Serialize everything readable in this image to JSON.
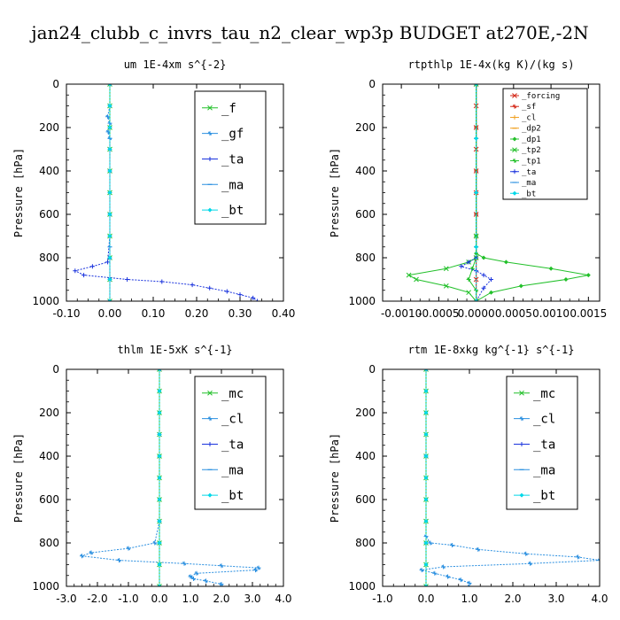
{
  "title": "jan24_clubb_c_invrs_tau_n2_clear_wp3p  BUDGET at270E,-2N",
  "colors": {
    "green": "#22c02a",
    "blue": "#1a33dd",
    "lightblue": "#2a8fe0",
    "cyan": "#00d8e8",
    "red": "#d42a1a",
    "orange": "#f0a020",
    "darkblue": "#4060d0"
  },
  "chart_data": [
    {
      "type": "line",
      "title": "um   1E-4xm s^{-2}",
      "ylabel": "Pressure [hPa]",
      "xlim": [
        -0.1,
        0.4
      ],
      "ylim": [
        0,
        1000
      ],
      "xticks": [
        "-0.10",
        "0.00",
        "0.10",
        "0.20",
        "0.30",
        "0.40"
      ],
      "yticks": [
        "0",
        "200",
        "400",
        "600",
        "800",
        "1000"
      ],
      "legend_position": "top-right",
      "series": [
        {
          "name": "_f",
          "color_key": "green",
          "x": [
            0,
            0,
            0,
            0,
            0,
            0,
            0,
            0,
            0,
            0,
            0
          ],
          "y": [
            0,
            100,
            200,
            300,
            400,
            500,
            600,
            700,
            800,
            900,
            1000
          ]
        },
        {
          "name": "_gf",
          "color_key": "lightblue",
          "x": [
            0,
            0,
            -0.005,
            0,
            -0.004,
            0,
            0,
            0,
            0,
            0,
            0,
            0
          ],
          "y": [
            0,
            100,
            150,
            180,
            220,
            250,
            300,
            400,
            600,
            800,
            900,
            1000
          ]
        },
        {
          "name": "_ta",
          "color_key": "blue",
          "x": [
            0,
            0,
            0,
            0,
            -0.005,
            -0.04,
            -0.08,
            -0.06,
            0.04,
            0.12,
            0.19,
            0.23,
            0.27,
            0.3,
            0.33,
            0.34
          ],
          "y": [
            0,
            200,
            400,
            700,
            820,
            840,
            860,
            880,
            900,
            910,
            925,
            940,
            955,
            970,
            985,
            1000
          ]
        },
        {
          "name": "_ma",
          "color_key": "lightblue",
          "x": [
            0,
            0,
            0,
            0,
            0
          ],
          "y": [
            0,
            250,
            500,
            750,
            1000
          ]
        },
        {
          "name": "_bt",
          "color_key": "cyan",
          "x": [
            0,
            0,
            0,
            0,
            0,
            0,
            0,
            0,
            0,
            0,
            0
          ],
          "y": [
            0,
            100,
            200,
            300,
            400,
            500,
            600,
            700,
            800,
            900,
            1000
          ]
        }
      ]
    },
    {
      "type": "line",
      "title": "rtpthlp   1E-4x(kg K)/(kg s)",
      "ylabel": "Pressure [hPa]",
      "xlim": [
        -0.00125,
        0.00165
      ],
      "ylim": [
        0,
        1000
      ],
      "xticks": [
        "-0.0010",
        "-0.0005",
        "0.0000",
        "0.0005",
        "0.0010",
        "0.0015"
      ],
      "yticks": [
        "0",
        "200",
        "400",
        "600",
        "800",
        "1000"
      ],
      "legend_position": "top-right",
      "series": [
        {
          "name": "_forcing",
          "color_key": "red",
          "x": [
            0,
            0,
            0,
            0,
            0,
            0,
            0,
            0,
            0,
            0,
            0
          ],
          "y": [
            0,
            100,
            200,
            300,
            400,
            500,
            600,
            700,
            800,
            900,
            1000
          ]
        },
        {
          "name": "_sf",
          "color_key": "red",
          "x": [
            0,
            0,
            0,
            0,
            0,
            0
          ],
          "y": [
            0,
            200,
            400,
            600,
            800,
            1000
          ]
        },
        {
          "name": "_cl",
          "color_key": "orange",
          "x": [
            0,
            0,
            0,
            0,
            0
          ],
          "y": [
            0,
            250,
            500,
            750,
            1000
          ]
        },
        {
          "name": "_dp2",
          "color_key": "orange",
          "x": [
            0,
            0,
            0,
            0,
            0
          ],
          "y": [
            0,
            250,
            500,
            750,
            1000
          ]
        },
        {
          "name": "_dp1",
          "color_key": "green",
          "x": [
            0,
            0,
            0,
            0.0001,
            0.0004,
            0.001,
            0.0015,
            0.0012,
            0.0006,
            0.0002,
            0
          ],
          "y": [
            0,
            700,
            780,
            800,
            820,
            850,
            880,
            900,
            930,
            960,
            1000
          ]
        },
        {
          "name": "_tp2",
          "color_key": "green",
          "x": [
            0,
            0,
            0,
            -0.0001,
            -0.0004,
            -0.0009,
            -0.0008,
            -0.0004,
            -0.0001,
            0
          ],
          "y": [
            0,
            700,
            800,
            820,
            850,
            880,
            900,
            930,
            960,
            1000
          ]
        },
        {
          "name": "_tp1",
          "color_key": "green",
          "x": [
            0,
            0,
            -5e-05,
            -0.0001,
            0,
            0
          ],
          "y": [
            0,
            800,
            850,
            900,
            950,
            1000
          ]
        },
        {
          "name": "_ta",
          "color_key": "blue",
          "x": [
            0,
            0,
            -0.0001,
            -0.0002,
            0,
            0.0001,
            0.0002,
            0.0001,
            0
          ],
          "y": [
            0,
            800,
            820,
            840,
            860,
            880,
            900,
            940,
            1000
          ]
        },
        {
          "name": "_ma",
          "color_key": "lightblue",
          "x": [
            0,
            0,
            0,
            0,
            0
          ],
          "y": [
            0,
            250,
            500,
            750,
            1000
          ]
        },
        {
          "name": "_bt",
          "color_key": "cyan",
          "x": [
            0,
            0,
            0,
            0,
            0
          ],
          "y": [
            0,
            250,
            500,
            750,
            1000
          ]
        }
      ]
    },
    {
      "type": "line",
      "title": "thlm   1E-5xK s^{-1}",
      "ylabel": "Pressure [hPa]",
      "xlim": [
        -3.0,
        4.0
      ],
      "ylim": [
        0,
        1000
      ],
      "xticks": [
        "-3.0",
        "-2.0",
        "-1.0",
        "0.0",
        "1.0",
        "2.0",
        "3.0",
        "4.0"
      ],
      "yticks": [
        "0",
        "200",
        "400",
        "600",
        "800",
        "1000"
      ],
      "legend_position": "top-right",
      "series": [
        {
          "name": "_mc",
          "color_key": "green",
          "x": [
            0,
            0,
            0,
            0,
            0,
            0,
            0,
            0,
            0,
            0,
            0
          ],
          "y": [
            0,
            100,
            200,
            300,
            400,
            500,
            600,
            700,
            800,
            900,
            1000
          ]
        },
        {
          "name": "_cl",
          "color_key": "lightblue",
          "x": [
            0,
            0,
            0,
            -0.15,
            -1.0,
            -2.2,
            -2.5,
            -1.3,
            0.8,
            2.0,
            3.2,
            3.1,
            1.2,
            1.0,
            1.1,
            1.5,
            2.0,
            2.0
          ],
          "y": [
            0,
            300,
            700,
            800,
            825,
            845,
            860,
            880,
            895,
            905,
            915,
            925,
            940,
            955,
            965,
            975,
            990,
            1000
          ]
        },
        {
          "name": "_ta",
          "color_key": "blue",
          "x": [
            0,
            0,
            0,
            0
          ],
          "y": [
            0,
            400,
            800,
            1000
          ]
        },
        {
          "name": "_ma",
          "color_key": "lightblue",
          "x": [
            0,
            0,
            0,
            0
          ],
          "y": [
            0,
            400,
            800,
            1000
          ]
        },
        {
          "name": "_bt",
          "color_key": "cyan",
          "x": [
            0,
            0,
            0,
            0,
            0,
            0,
            0,
            0,
            0,
            0,
            0
          ],
          "y": [
            0,
            100,
            200,
            300,
            400,
            500,
            600,
            700,
            800,
            900,
            1000
          ]
        }
      ]
    },
    {
      "type": "line",
      "title": "rtm   1E-8xkg kg^{-1} s^{-1}",
      "ylabel": "Pressure [hPa]",
      "xlim": [
        -1.0,
        4.0
      ],
      "ylim": [
        0,
        1000
      ],
      "xticks": [
        "-1.0",
        "0.0",
        "1.0",
        "2.0",
        "3.0",
        "4.0"
      ],
      "yticks": [
        "0",
        "200",
        "400",
        "600",
        "800",
        "1000"
      ],
      "legend_position": "top-right",
      "series": [
        {
          "name": "_mc",
          "color_key": "green",
          "x": [
            0,
            0,
            0,
            0,
            0,
            0,
            0,
            0,
            0,
            0,
            0
          ],
          "y": [
            0,
            100,
            200,
            300,
            400,
            500,
            600,
            700,
            800,
            900,
            1000
          ]
        },
        {
          "name": "_cl",
          "color_key": "lightblue",
          "x": [
            0,
            0,
            0,
            0.1,
            0.6,
            1.2,
            2.3,
            3.5,
            4.0,
            2.4,
            0.4,
            -0.1,
            0.2,
            0.5,
            0.8,
            1.0,
            1.0
          ],
          "y": [
            0,
            400,
            770,
            800,
            810,
            830,
            850,
            865,
            880,
            895,
            910,
            925,
            940,
            955,
            970,
            985,
            1000
          ]
        },
        {
          "name": "_ta",
          "color_key": "blue",
          "x": [
            0,
            0,
            0,
            0
          ],
          "y": [
            0,
            400,
            800,
            1000
          ]
        },
        {
          "name": "_ma",
          "color_key": "lightblue",
          "x": [
            0,
            0,
            0,
            0
          ],
          "y": [
            0,
            400,
            800,
            1000
          ]
        },
        {
          "name": "_bt",
          "color_key": "cyan",
          "x": [
            0,
            0,
            0,
            0,
            0,
            0,
            0,
            0,
            0,
            0,
            0
          ],
          "y": [
            0,
            100,
            200,
            300,
            400,
            500,
            600,
            700,
            800,
            900,
            1000
          ]
        }
      ]
    }
  ]
}
